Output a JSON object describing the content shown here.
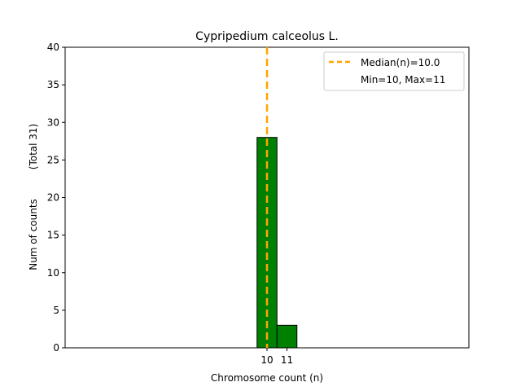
{
  "chart_data": {
    "type": "bar",
    "title": "Cypripedium calceolus L.",
    "xlabel": "Chromosome count (n)",
    "ylabel": "Num of counts",
    "ylabel_total": "(Total 31)",
    "ylim": [
      0,
      40
    ],
    "y_ticks": [
      "0",
      "5",
      "10",
      "15",
      "20",
      "25",
      "30",
      "35",
      "40"
    ],
    "x_tick_labels": [
      "10",
      "11"
    ],
    "bars": [
      {
        "x": 10,
        "value": 28
      },
      {
        "x": 11,
        "value": 3
      }
    ],
    "median": 10.0,
    "legend": {
      "placement": "upper-right",
      "median_label": "Median(n)=10.0",
      "minmax_label": "Min=10, Max=11"
    },
    "colors": {
      "bar_fill": "#008000",
      "bar_edge": "#000000",
      "median_line": "#FFA500"
    }
  }
}
